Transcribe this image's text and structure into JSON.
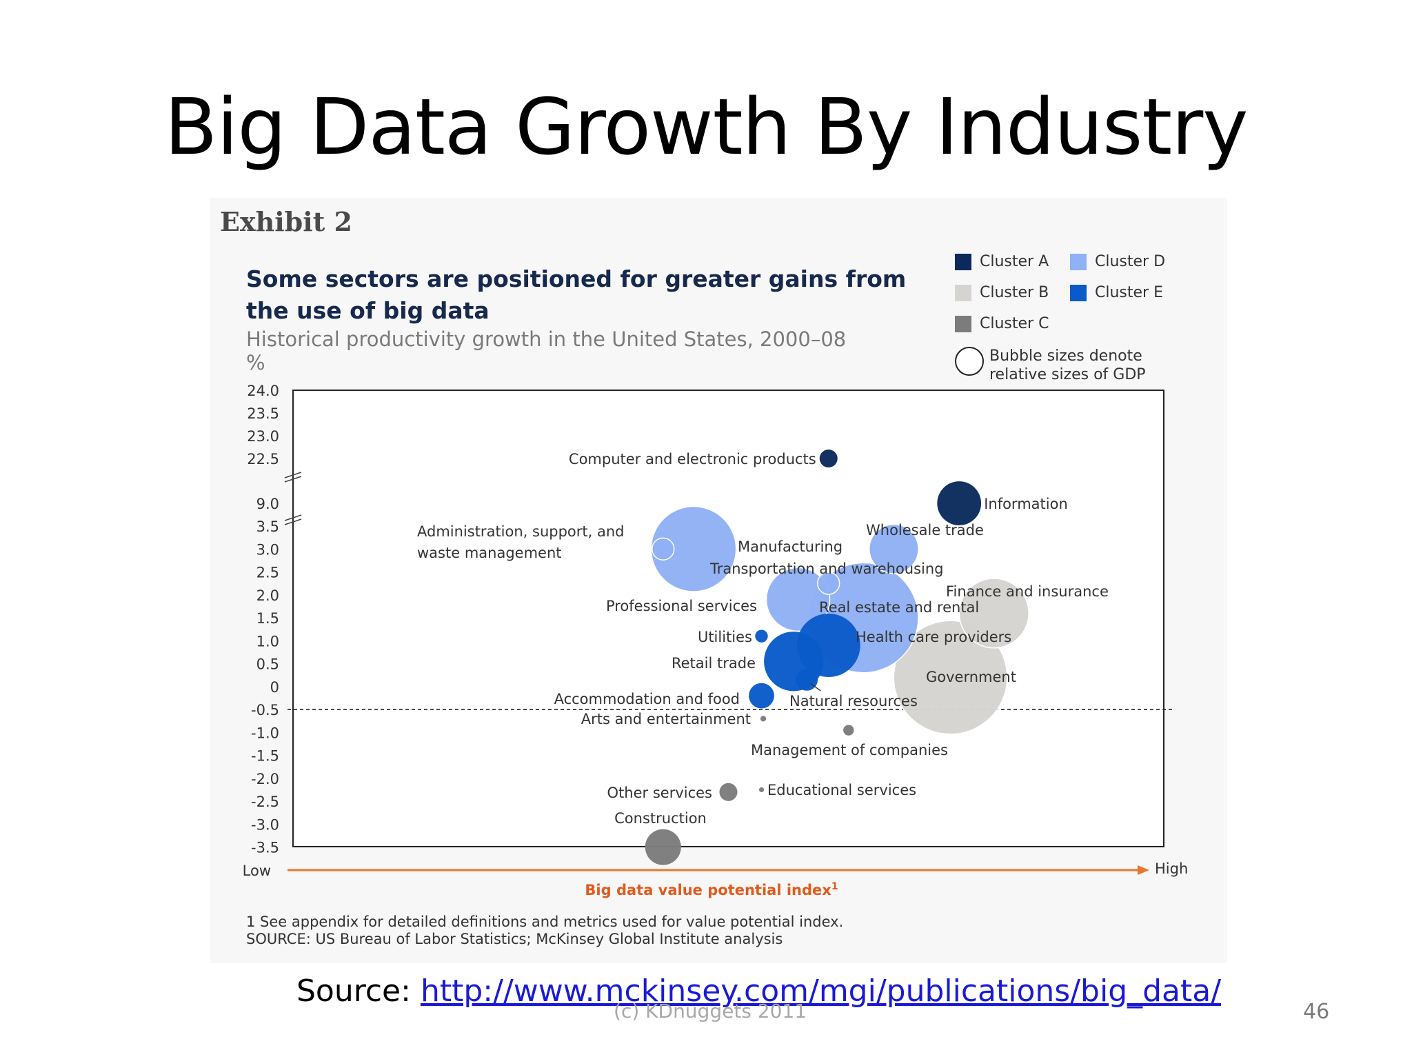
{
  "slide": {
    "title": "Big Data Growth By Industry",
    "source_prefix": "Source: ",
    "source_url": "http://www.mckinsey.com/mgi/publications/big_data/",
    "watermark": "(c) KDnuggets 2011",
    "page_number": "46"
  },
  "exhibit": {
    "label": "Exhibit 2",
    "title": "Some sectors are positioned for greater gains from the use of big data",
    "subtitle": "Historical productivity growth in the United States, 2000–08",
    "unit": "%",
    "footnote": "1  See appendix for detailed definitions and metrics used for value potential index.",
    "source": "SOURCE:  US Bureau of Labor Statistics; McKinsey Global Institute analysis"
  },
  "legend": {
    "items": [
      {
        "label": "Cluster A",
        "color": "#0b2a5c"
      },
      {
        "label": "Cluster D",
        "color": "#8fb1f5"
      },
      {
        "label": "Cluster B",
        "color": "#d6d4d1"
      },
      {
        "label": "Cluster E",
        "color": "#0a5bc9"
      },
      {
        "label": "Cluster C",
        "color": "#7c7c7c"
      }
    ],
    "bubble_note": "Bubble sizes denote relative sizes of GDP"
  },
  "chart_data": {
    "type": "scatter",
    "title": "Some sectors are positioned for greater gains from the use of big data",
    "subtitle": "Historical productivity growth in the United States, 2000–08",
    "ylabel": "%",
    "xlabel": "Big data value potential index",
    "xlabel_superscript": "1",
    "x_low_label": "Low",
    "x_high_label": "High",
    "y_ticks": [
      "24.0",
      "23.5",
      "23.0",
      "22.5",
      "9.0",
      "3.5",
      "3.0",
      "2.5",
      "2.0",
      "1.5",
      "1.0",
      "0.5",
      "0",
      "-0.5",
      "-1.0",
      "-1.5",
      "-2.0",
      "-2.5",
      "-3.0",
      "-3.5"
    ],
    "y_axis_break": true,
    "reference_line_y": -0.5,
    "legend_position": "top-right",
    "x_range": [
      0,
      100
    ],
    "points": [
      {
        "label": "Computer and electronic products",
        "x": 61.5,
        "y": 22.5,
        "cluster": "A",
        "gdp": 2
      },
      {
        "label": "Information",
        "x": 76.5,
        "y": 9.0,
        "cluster": "A",
        "gdp": 12
      },
      {
        "label": "Administration, support, and waste management",
        "x": 42.5,
        "y": 3.0,
        "cluster": "D",
        "gdp": 3
      },
      {
        "label": "Manufacturing",
        "x": 46.0,
        "y": 3.0,
        "cluster": "D",
        "gdp": 45
      },
      {
        "label": "Wholesale trade",
        "x": 69.0,
        "y": 3.0,
        "cluster": "D",
        "gdp": 15
      },
      {
        "label": "Transportation and warehousing",
        "x": 61.5,
        "y": 2.25,
        "cluster": "D",
        "gdp": 3
      },
      {
        "label": "Professional services",
        "x": 58.0,
        "y": 1.9,
        "cluster": "D",
        "gdp": 25
      },
      {
        "label": "Real estate and rental",
        "x": 65.5,
        "y": 1.5,
        "cluster": "D",
        "gdp": 75
      },
      {
        "label": "Finance and insurance",
        "x": 80.5,
        "y": 1.6,
        "cluster": "B",
        "gdp": 30
      },
      {
        "label": "Utilities",
        "x": 53.8,
        "y": 1.1,
        "cluster": "E",
        "gdp": 1
      },
      {
        "label": "Health care providers",
        "x": 61.5,
        "y": 0.9,
        "cluster": "E",
        "gdp": 25
      },
      {
        "label": "Retail trade",
        "x": 57.5,
        "y": 0.55,
        "cluster": "E",
        "gdp": 22
      },
      {
        "label": "Government",
        "x": 75.5,
        "y": 0.2,
        "cluster": "B",
        "gdp": 80
      },
      {
        "label": "Natural resources",
        "x": 59.0,
        "y": 0.15,
        "cluster": "E",
        "gdp": 3
      },
      {
        "label": "Accommodation and food",
        "x": 53.8,
        "y": -0.2,
        "cluster": "E",
        "gdp": 4
      },
      {
        "label": "Arts and entertainment",
        "x": 54.0,
        "y": -0.7,
        "cluster": "C",
        "gdp": 0.2
      },
      {
        "label": "Management of companies",
        "x": 63.8,
        "y": -0.95,
        "cluster": "C",
        "gdp": 0.7
      },
      {
        "label": "Other services",
        "x": 50.0,
        "y": -2.3,
        "cluster": "C",
        "gdp": 2
      },
      {
        "label": "Educational services",
        "x": 53.8,
        "y": -2.25,
        "cluster": "C",
        "gdp": 0.15
      },
      {
        "label": "Construction",
        "x": 42.5,
        "y": -3.5,
        "cluster": "C",
        "gdp": 8
      }
    ]
  }
}
